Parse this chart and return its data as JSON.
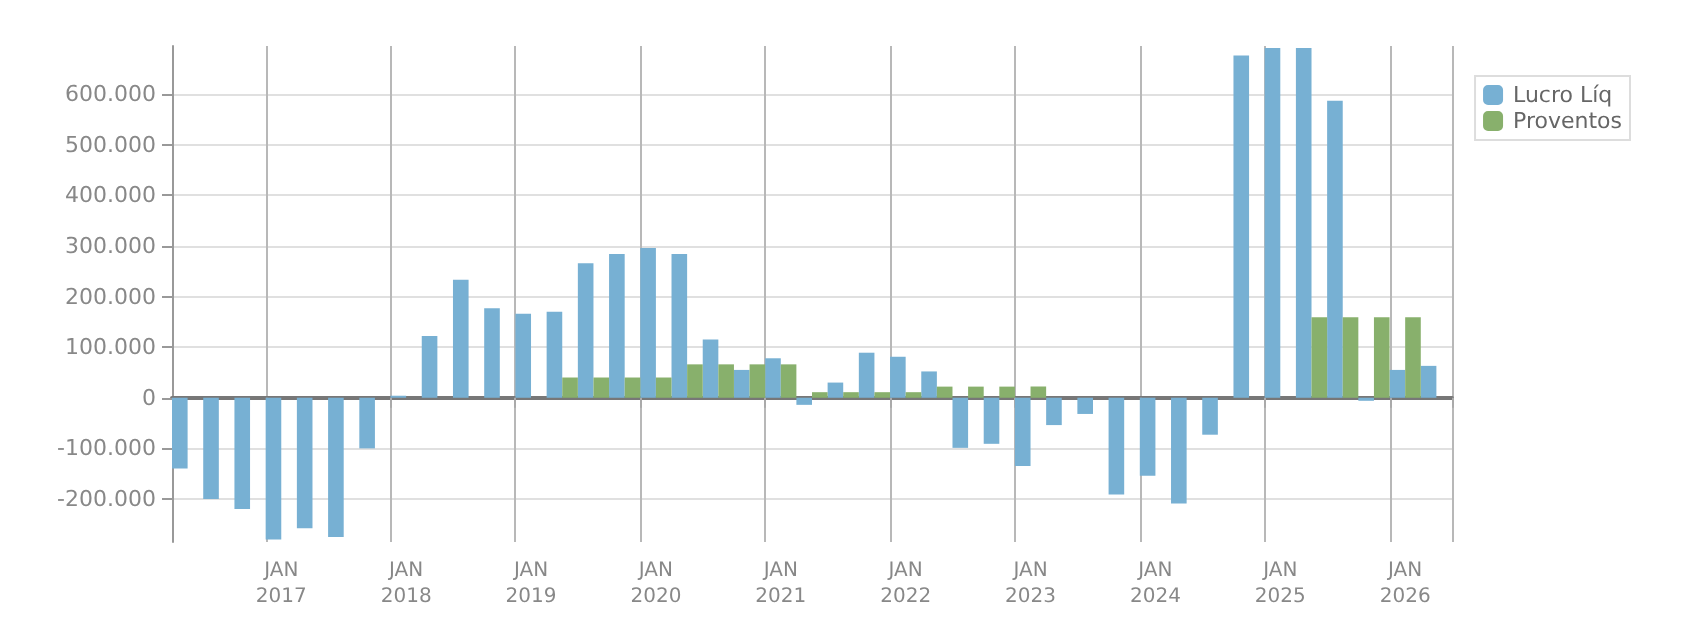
{
  "chart_data": {
    "type": "bar",
    "categories": [
      null,
      null,
      null,
      "JAN\n2017",
      null,
      null,
      null,
      "JAN\n2018",
      null,
      null,
      null,
      "JAN\n2019",
      null,
      null,
      null,
      "JAN\n2020",
      null,
      null,
      null,
      "JAN\n2021",
      null,
      null,
      null,
      "JAN\n2022",
      null,
      null,
      null,
      "JAN\n2023",
      null,
      null,
      null,
      "JAN\n2024",
      null,
      null,
      null,
      "JAN\n2025",
      null,
      null,
      null,
      "JAN\n2026",
      null
    ],
    "series": [
      {
        "name": "Lucro Líq",
        "color": "#77b0d3",
        "values": [
          -140000,
          -200000,
          -220000,
          -280000,
          -258000,
          -275000,
          -100000,
          4000,
          122000,
          233000,
          177000,
          166000,
          170000,
          266000,
          284000,
          296000,
          284000,
          115000,
          55000,
          78000,
          -14000,
          30000,
          89000,
          81000,
          52000,
          -99000,
          -91000,
          -135000,
          -54000,
          -32000,
          -191000,
          -154000,
          -209000,
          -73000,
          676000,
          691000,
          691000,
          587000,
          -6000,
          55000,
          63000
        ]
      },
      {
        "name": "Proventos",
        "color": "#88b06c",
        "values": [
          null,
          null,
          null,
          null,
          null,
          null,
          null,
          0,
          0,
          0,
          0,
          0,
          40000,
          40000,
          40000,
          40000,
          66000,
          66000,
          66000,
          66000,
          11000,
          11000,
          11000,
          11000,
          22000,
          22000,
          22000,
          22000,
          0,
          0,
          0,
          0,
          0,
          0,
          0,
          0,
          159000,
          159000,
          159000,
          159000,
          0
        ]
      }
    ],
    "ylim": [
      -285000,
      695000
    ],
    "yticks": [
      {
        "value": -200000,
        "label": "-200.000"
      },
      {
        "value": -100000,
        "label": "-100.000"
      },
      0,
      {
        "value": 100000,
        "label": "100.000"
      },
      {
        "value": 200000,
        "label": "200.000"
      },
      {
        "value": 300000,
        "label": "300.000"
      },
      {
        "value": 400000,
        "label": "400.000"
      },
      {
        "value": 500000,
        "label": "500.000"
      },
      {
        "value": 600000,
        "label": "600.000"
      }
    ],
    "grid": true,
    "legend": "top right"
  }
}
